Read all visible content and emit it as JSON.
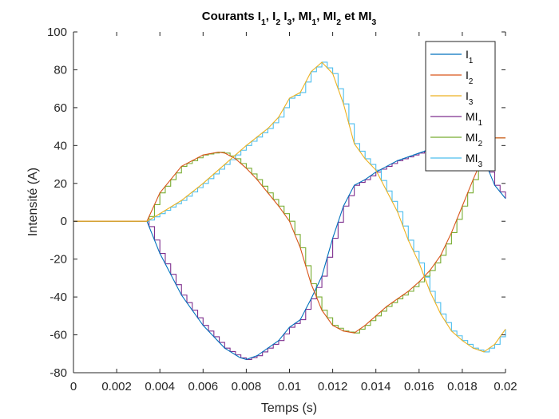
{
  "chart_data": {
    "type": "line",
    "title": {
      "parts": [
        {
          "text": "Courants I",
          "sub": false
        },
        {
          "text": "1",
          "sub": true
        },
        {
          "text": ", I",
          "sub": false
        },
        {
          "text": "2",
          "sub": true
        },
        {
          "text": " I",
          "sub": false
        },
        {
          "text": "3",
          "sub": true
        },
        {
          "text": ", MI",
          "sub": false
        },
        {
          "text": "1",
          "sub": true
        },
        {
          "text": ", MI",
          "sub": false
        },
        {
          "text": "2",
          "sub": true
        },
        {
          "text": " et MI",
          "sub": false
        },
        {
          "text": "3",
          "sub": true
        }
      ]
    },
    "xlabel": "Temps (s)",
    "ylabel": "Intensité (A)",
    "xlim": [
      0,
      0.02
    ],
    "ylim": [
      -80,
      100
    ],
    "xticks": [
      "0",
      "0.002",
      "0.004",
      "0.006",
      "0.008",
      "0.01",
      "0.012",
      "0.014",
      "0.016",
      "0.018",
      "0.02"
    ],
    "yticks": [
      "-80",
      "-60",
      "-40",
      "-20",
      "0",
      "20",
      "40",
      "60",
      "80",
      "100"
    ],
    "grid": false,
    "legend_position": "top-right",
    "step_period": 0.00025,
    "series": [
      {
        "name": "I",
        "sub": "1",
        "color": "#0072BD",
        "style": "line",
        "x": [
          0,
          0.0034,
          0.004,
          0.005,
          0.006,
          0.007,
          0.0077,
          0.008,
          0.0085,
          0.009,
          0.0095,
          0.01,
          0.0105,
          0.011,
          0.0115,
          0.012,
          0.0125,
          0.013,
          0.0135,
          0.014,
          0.0145,
          0.015,
          0.0155,
          0.016,
          0.0165,
          0.017,
          0.0175,
          0.018,
          0.0185,
          0.019,
          0.0195,
          0.02
        ],
        "y": [
          0,
          0,
          -17,
          -39,
          -55,
          -67,
          -72,
          -73,
          -71,
          -67,
          -63,
          -56,
          -52,
          -41,
          -29,
          -9,
          8,
          19,
          22,
          26,
          29,
          32,
          34,
          36,
          38,
          40,
          42,
          44,
          45,
          33,
          19,
          12
        ]
      },
      {
        "name": "I",
        "sub": "2",
        "color": "#D95319",
        "style": "line",
        "x": [
          0,
          0.0034,
          0.004,
          0.005,
          0.006,
          0.0067,
          0.007,
          0.0075,
          0.008,
          0.0085,
          0.009,
          0.0095,
          0.01,
          0.0105,
          0.011,
          0.0115,
          0.012,
          0.0125,
          0.013,
          0.0135,
          0.014,
          0.0145,
          0.015,
          0.0155,
          0.016,
          0.0165,
          0.017,
          0.0175,
          0.018,
          0.0185,
          0.019,
          0.0195,
          0.02
        ],
        "y": [
          0,
          0,
          15,
          29,
          35,
          36.5,
          36,
          33,
          28,
          22,
          15,
          8,
          0,
          -14,
          -33,
          -47,
          -55,
          -58,
          -59,
          -55,
          -50,
          -45,
          -41,
          -37,
          -32,
          -26,
          -18,
          -6,
          8,
          22,
          35,
          44,
          44
        ]
      },
      {
        "name": "I",
        "sub": "3",
        "color": "#EDB120",
        "style": "line",
        "x": [
          0,
          0.0034,
          0.004,
          0.005,
          0.006,
          0.007,
          0.008,
          0.009,
          0.0095,
          0.01,
          0.0105,
          0.011,
          0.0115,
          0.012,
          0.0125,
          0.013,
          0.0135,
          0.014,
          0.0145,
          0.015,
          0.0155,
          0.016,
          0.0165,
          0.017,
          0.0175,
          0.018,
          0.0185,
          0.019,
          0.0195,
          0.02
        ],
        "y": [
          0,
          0,
          4,
          11,
          20,
          30,
          40,
          49,
          55,
          65,
          68,
          79,
          84,
          78,
          62,
          41,
          33,
          27,
          16,
          5,
          -10,
          -22,
          -37,
          -49,
          -58,
          -63,
          -67,
          -69,
          -65,
          -57
        ]
      },
      {
        "name": "MI",
        "sub": "1",
        "color": "#7E2F8E",
        "style": "step",
        "ref": 0
      },
      {
        "name": "MI",
        "sub": "2",
        "color": "#77AC30",
        "style": "step",
        "ref": 1
      },
      {
        "name": "MI",
        "sub": "3",
        "color": "#4DBEEE",
        "style": "step",
        "ref": 2
      }
    ]
  }
}
